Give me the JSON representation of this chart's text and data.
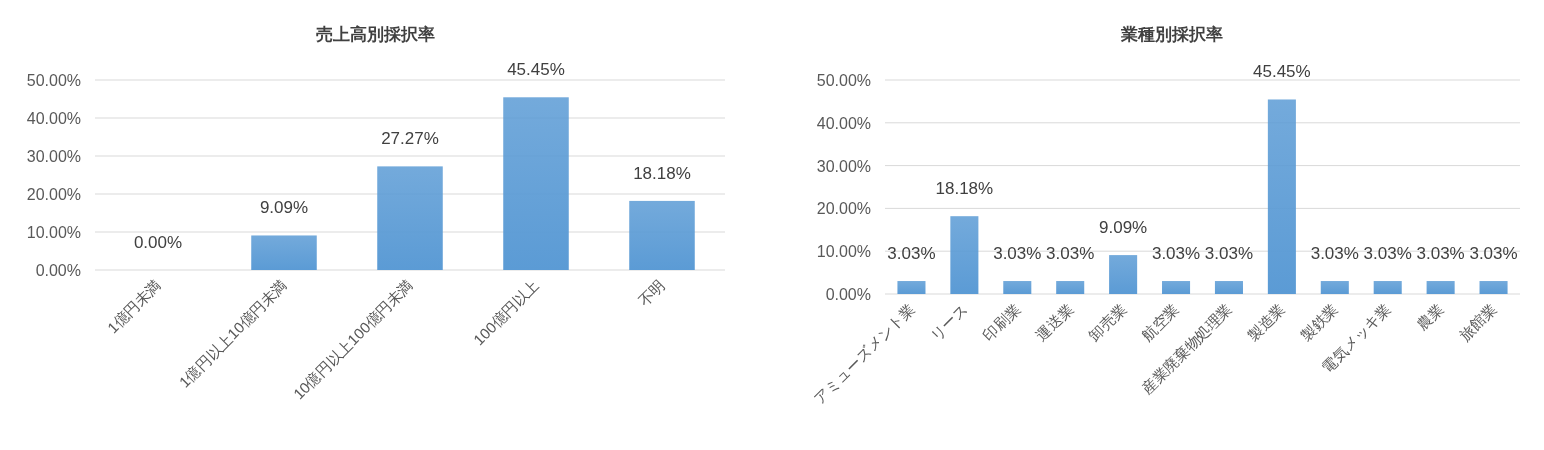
{
  "chart_data": [
    {
      "type": "bar",
      "title": "売上高別採択率",
      "categories": [
        "1億円未満",
        "1億円以上10億円未満",
        "10億円以上100億円未満",
        "100億円以上",
        "不明"
      ],
      "values": [
        0,
        9.09,
        27.27,
        45.45,
        18.18
      ],
      "value_labels": [
        "0.00%",
        "9.09%",
        "27.27%",
        "45.45%",
        "18.18%"
      ],
      "color": "#5b9bd5",
      "ylim": [
        0,
        50
      ],
      "yticks": [
        {
          "value": 0,
          "label": "0.00%"
        },
        {
          "value": 10,
          "label": "10.00%"
        },
        {
          "value": 20,
          "label": "20.00%"
        },
        {
          "value": 30,
          "label": "30.00%"
        },
        {
          "value": 40,
          "label": "40.00%"
        },
        {
          "value": 50,
          "label": "50.00%"
        }
      ],
      "grid": "y"
    },
    {
      "type": "bar",
      "title": "業種別採択率",
      "categories": [
        "アミューズメント業",
        "リース",
        "印刷業",
        "運送業",
        "卸売業",
        "航空業",
        "産業廃棄物処理業",
        "製造業",
        "製鉄業",
        "電気メッキ業",
        "農業",
        "旅館業"
      ],
      "values": [
        3.03,
        18.18,
        3.03,
        3.03,
        9.09,
        3.03,
        3.03,
        45.45,
        3.03,
        3.03,
        3.03,
        3.03
      ],
      "value_labels": [
        "3.03%",
        "18.18%",
        "3.03%",
        "3.03%",
        "9.09%",
        "3.03%",
        "3.03%",
        "45.45%",
        "3.03%",
        "3.03%",
        "3.03%",
        "3.03%"
      ],
      "color": "#5b9bd5",
      "ylim": [
        0,
        50
      ],
      "yticks": [
        {
          "value": 0,
          "label": "0.00%"
        },
        {
          "value": 10,
          "label": "10.00%"
        },
        {
          "value": 20,
          "label": "20.00%"
        },
        {
          "value": 30,
          "label": "30.00%"
        },
        {
          "value": 40,
          "label": "40.00%"
        },
        {
          "value": 50,
          "label": "50.00%"
        }
      ],
      "grid": "y"
    }
  ]
}
